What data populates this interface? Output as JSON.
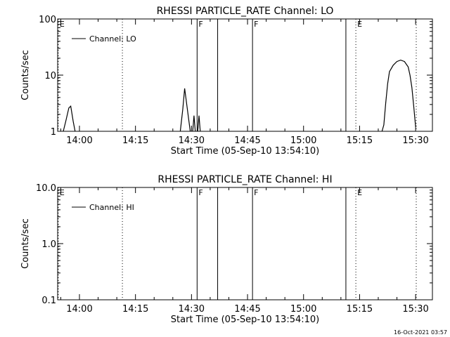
{
  "footer_timestamp": "16-Oct-2021 03:57",
  "chart_data": [
    {
      "type": "line",
      "title": "RHESSI PARTICLE_RATE Channel: LO",
      "xlabel": "Start Time (05-Sep-10 13:54:10)",
      "ylabel": "Counts/sec",
      "yscale": "log",
      "ylim": [
        1,
        100
      ],
      "yticks": [
        {
          "v": 1,
          "label": "1"
        },
        {
          "v": 10,
          "label": "10"
        },
        {
          "v": 100,
          "label": "100"
        }
      ],
      "xlim": [
        "13:54:10",
        "15:34:30"
      ],
      "xticks": [
        {
          "t": "14:00",
          "label": "14:00"
        },
        {
          "t": "14:15",
          "label": "14:15"
        },
        {
          "t": "14:30",
          "label": "14:30"
        },
        {
          "t": "14:45",
          "label": "14:45"
        },
        {
          "t": "15:00",
          "label": "15:00"
        },
        {
          "t": "15:15",
          "label": "15:15"
        },
        {
          "t": "15:30",
          "label": "15:30"
        }
      ],
      "grid": false,
      "legend": {
        "placement": "top-left",
        "entries": [
          "Channel: LO"
        ]
      },
      "markers": [
        {
          "t": "13:54:20",
          "label": "E",
          "style": "dotted"
        },
        {
          "t": "14:11:30",
          "label": "",
          "style": "dotted"
        },
        {
          "t": "14:31:30",
          "label": "F",
          "style": "solid"
        },
        {
          "t": "14:37:00",
          "label": "",
          "style": "solid"
        },
        {
          "t": "14:46:20",
          "label": "F",
          "style": "solid"
        },
        {
          "t": "15:11:20",
          "label": "",
          "style": "solid"
        },
        {
          "t": "15:14:00",
          "label": "E",
          "style": "dotted"
        },
        {
          "t": "15:30:10",
          "label": "",
          "style": "dotted"
        }
      ],
      "series": [
        {
          "name": "Channel: LO",
          "segments": [
            {
              "x": [
                "13:55:40",
                "13:56:20",
                "13:57:10",
                "13:57:40",
                "13:58:20",
                "13:58:50"
              ],
              "y": [
                1,
                1.5,
                2.6,
                2.8,
                1.5,
                1
              ]
            },
            {
              "x": [
                "14:27:00",
                "14:27:40",
                "14:28:10",
                "14:28:40",
                "14:29:10",
                "14:29:40"
              ],
              "y": [
                1,
                2.5,
                5.8,
                3.2,
                1.8,
                1
              ]
            },
            {
              "x": [
                "14:30:20",
                "14:30:40",
                "14:31:00"
              ],
              "y": [
                1,
                1.9,
                1
              ]
            },
            {
              "x": [
                "14:31:40",
                "14:32:00",
                "14:32:20"
              ],
              "y": [
                1,
                1.9,
                1
              ]
            },
            {
              "x": [
                "15:21:00",
                "15:21:30",
                "15:22:00",
                "15:22:30",
                "15:23:00",
                "15:24:00",
                "15:25:00",
                "15:26:00",
                "15:27:00",
                "15:28:00",
                "15:28:30",
                "15:29:00",
                "15:29:30",
                "15:30:00"
              ],
              "y": [
                1,
                1.3,
                3.2,
                7.0,
                11.5,
                15.0,
                17.5,
                18.5,
                17.5,
                14.0,
                10.0,
                6.0,
                2.8,
                1.2
              ]
            }
          ]
        }
      ]
    },
    {
      "type": "line",
      "title": "RHESSI PARTICLE_RATE Channel: HI",
      "xlabel": "Start Time (05-Sep-10 13:54:10)",
      "ylabel": "Counts/sec",
      "yscale": "log",
      "ylim": [
        0.1,
        10
      ],
      "yticks": [
        {
          "v": 0.1,
          "label": "0.1"
        },
        {
          "v": 1,
          "label": "1.0"
        },
        {
          "v": 10,
          "label": "10.0"
        }
      ],
      "xlim": [
        "13:54:10",
        "15:34:30"
      ],
      "xticks": [
        {
          "t": "14:00",
          "label": "14:00"
        },
        {
          "t": "14:15",
          "label": "14:15"
        },
        {
          "t": "14:30",
          "label": "14:30"
        },
        {
          "t": "14:45",
          "label": "14:45"
        },
        {
          "t": "15:00",
          "label": "15:00"
        },
        {
          "t": "15:15",
          "label": "15:15"
        },
        {
          "t": "15:30",
          "label": "15:30"
        }
      ],
      "grid": false,
      "legend": {
        "placement": "top-left",
        "entries": [
          "Channel: HI"
        ]
      },
      "markers": [
        {
          "t": "13:54:20",
          "label": "E",
          "style": "dotted"
        },
        {
          "t": "14:11:30",
          "label": "",
          "style": "dotted"
        },
        {
          "t": "14:31:30",
          "label": "F",
          "style": "solid"
        },
        {
          "t": "14:37:00",
          "label": "",
          "style": "solid"
        },
        {
          "t": "14:46:20",
          "label": "F",
          "style": "solid"
        },
        {
          "t": "15:11:20",
          "label": "",
          "style": "solid"
        },
        {
          "t": "15:14:00",
          "label": "E",
          "style": "dotted"
        },
        {
          "t": "15:30:10",
          "label": "",
          "style": "dotted"
        }
      ],
      "series": [
        {
          "name": "Channel: HI",
          "segments": []
        }
      ]
    }
  ]
}
